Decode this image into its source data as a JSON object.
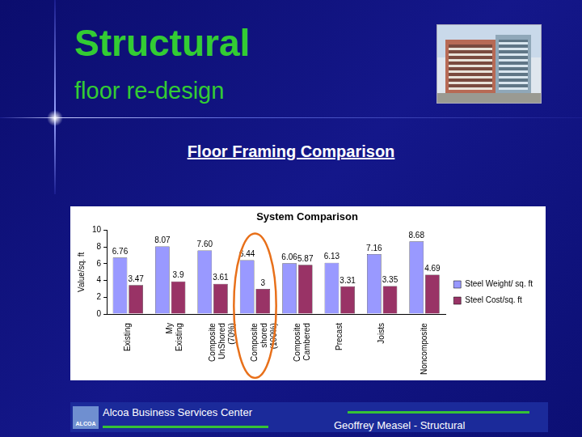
{
  "slide": {
    "title": "Structural",
    "subtitle": "floor re-design",
    "heading": "Floor Framing Comparison",
    "logo": "ALCOA",
    "footer_left": "Alcoa Business Services Center",
    "footer_right": "Geoffrey Measel - Structural"
  },
  "chart_data": {
    "type": "bar",
    "title": "System Comparison",
    "y_label": "Value/sq. ft",
    "categories": [
      "Existing",
      "My Existing",
      "Composite UnShored (70%)",
      "Composite shored (100%)",
      "Composite Cambered",
      "Precast",
      "Joists",
      "Noncomposite"
    ],
    "series": [
      {
        "name": "Steel Weight/ sq. ft",
        "color": "#9999ff",
        "values": [
          6.76,
          8.07,
          7.6,
          6.44,
          6.06,
          6.13,
          7.16,
          8.68
        ],
        "value_labels": [
          "6.76",
          "8.07",
          "7.60",
          "6.44",
          "6.06",
          "6.13",
          "7.16",
          "8.68"
        ]
      },
      {
        "name": "Steel Cost/sq. ft",
        "color": "#993366",
        "values": [
          3.47,
          3.9,
          3.61,
          3,
          5.87,
          3.31,
          3.35,
          4.69
        ]
      }
    ],
    "ylim": [
      0,
      10
    ],
    "yticks": [
      0,
      2,
      4,
      6,
      8,
      10
    ],
    "grid": false,
    "legend": "right",
    "data_labels": true
  }
}
